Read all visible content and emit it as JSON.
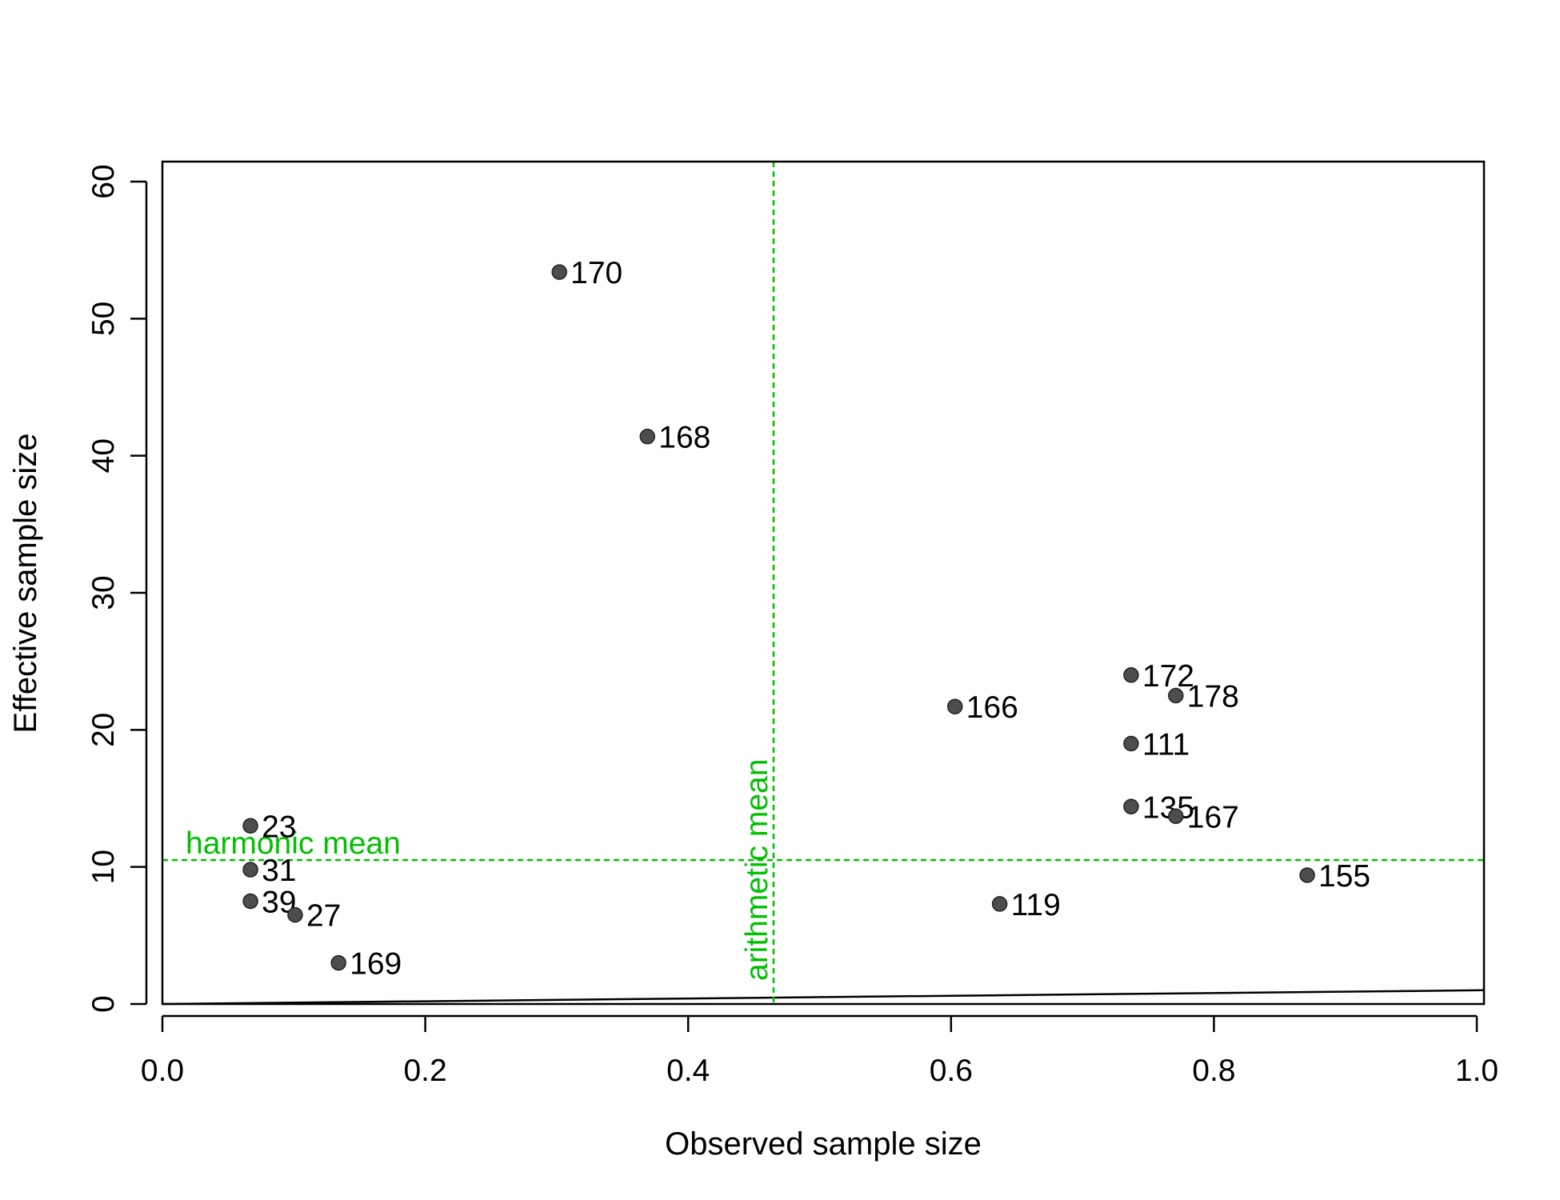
{
  "chart_data": {
    "type": "scatter",
    "xlabel": "Observed sample size",
    "ylabel": "Effective sample size",
    "xlim": [
      0,
      1
    ],
    "ylim": [
      0,
      60
    ],
    "x_ticks": [
      "0.0",
      "0.2",
      "0.4",
      "0.6",
      "0.8",
      "1.0"
    ],
    "x_tick_values": [
      0,
      0.2,
      0.4,
      0.6,
      0.8,
      1.0
    ],
    "y_ticks": [
      "0",
      "10",
      "20",
      "30",
      "40",
      "50",
      "60"
    ],
    "y_tick_values": [
      0,
      10,
      20,
      30,
      40,
      50,
      60
    ],
    "grid": false,
    "points": [
      {
        "label": "170",
        "x": 0.302,
        "y": 53.4
      },
      {
        "label": "168",
        "x": 0.369,
        "y": 41.4
      },
      {
        "label": "172",
        "x": 0.737,
        "y": 24.0
      },
      {
        "label": "178",
        "x": 0.771,
        "y": 22.5
      },
      {
        "label": "166",
        "x": 0.603,
        "y": 21.7
      },
      {
        "label": "111",
        "x": 0.737,
        "y": 19.0
      },
      {
        "label": "135",
        "x": 0.737,
        "y": 14.4
      },
      {
        "label": "167",
        "x": 0.771,
        "y": 13.7
      },
      {
        "label": "23",
        "x": 0.067,
        "y": 13.0
      },
      {
        "label": "31",
        "x": 0.067,
        "y": 9.8
      },
      {
        "label": "155",
        "x": 0.871,
        "y": 9.4
      },
      {
        "label": "39",
        "x": 0.067,
        "y": 7.5
      },
      {
        "label": "119",
        "x": 0.637,
        "y": 7.3
      },
      {
        "label": "27",
        "x": 0.101,
        "y": 6.5
      },
      {
        "label": "169",
        "x": 0.134,
        "y": 3.0
      }
    ],
    "reference_lines": {
      "harmonic_mean": {
        "label": "harmonic mean",
        "y": 10.5,
        "color": "#00c000"
      },
      "arithmetic_mean": {
        "label": "arithmetic mean",
        "x": 0.465,
        "color": "#00c000"
      },
      "identity_line": {
        "x": [
          0,
          1
        ],
        "y": [
          0,
          1
        ],
        "color": "#000000"
      }
    },
    "point_color": "#4d4d4d"
  }
}
